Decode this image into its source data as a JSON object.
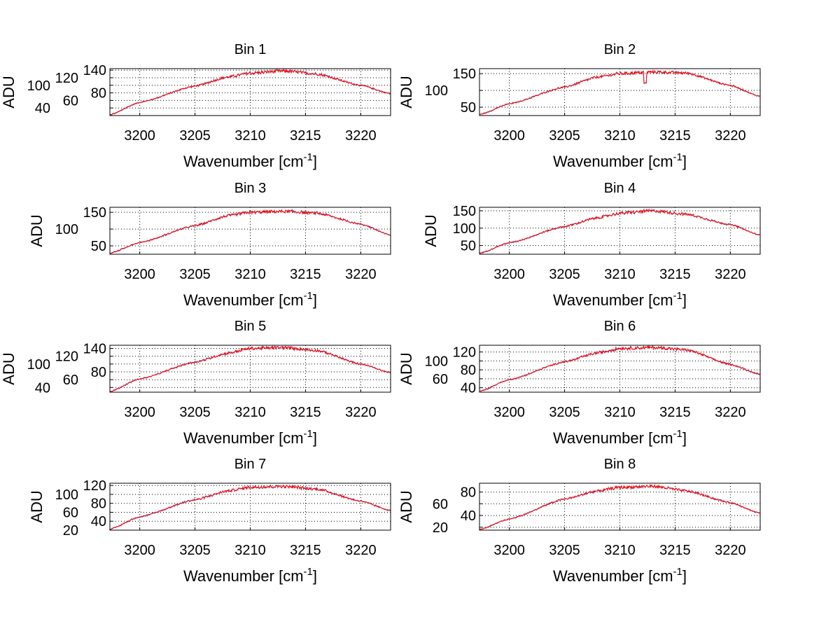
{
  "chart_data": [
    {
      "type": "line",
      "title": "Bin 1",
      "xlabel": "Wavenumber [cm",
      "xlabel_sup": "-1",
      "xlabel_end": "]",
      "ylabel": "ADU",
      "xlim": [
        3197.3,
        3222.7
      ],
      "ylim": [
        20,
        144
      ],
      "xticks": [
        3200,
        3205,
        3210,
        3215,
        3220
      ],
      "yticks": [
        40,
        60,
        80,
        100,
        120,
        140
      ],
      "grid": true,
      "x": [
        3197.3,
        3200,
        3205,
        3208,
        3210,
        3213,
        3216,
        3220,
        3222.7
      ],
      "y": [
        22,
        55,
        98,
        122,
        132,
        138,
        130,
        100,
        78
      ]
    },
    {
      "type": "line",
      "title": "Bin 2",
      "xlabel": "Wavenumber [cm",
      "xlabel_sup": "-1",
      "xlabel_end": "]",
      "ylabel": "ADU",
      "xlim": [
        3197.3,
        3222.7
      ],
      "ylim": [
        25,
        165
      ],
      "xticks": [
        3200,
        3205,
        3210,
        3215,
        3220
      ],
      "yticks": [
        50,
        100,
        150
      ],
      "grid": true,
      "x": [
        3197.3,
        3200,
        3205,
        3208,
        3210,
        3213,
        3216,
        3220,
        3222.7
      ],
      "y": [
        28,
        60,
        110,
        140,
        150,
        155,
        152,
        115,
        82
      ],
      "dip": {
        "x": 3212.3,
        "y": 122
      }
    },
    {
      "type": "line",
      "title": "Bin 3",
      "xlabel": "Wavenumber [cm",
      "xlabel_sup": "-1",
      "xlabel_end": "]",
      "ylabel": "ADU",
      "xlim": [
        3197.3,
        3222.7
      ],
      "ylim": [
        25,
        165
      ],
      "xticks": [
        3200,
        3205,
        3210,
        3215,
        3220
      ],
      "yticks": [
        50,
        100,
        150
      ],
      "grid": true,
      "x": [
        3197.3,
        3200,
        3205,
        3208,
        3210,
        3213,
        3216,
        3220,
        3222.7
      ],
      "y": [
        28,
        60,
        110,
        140,
        150,
        153,
        148,
        115,
        82
      ]
    },
    {
      "type": "line",
      "title": "Bin 4",
      "xlabel": "Wavenumber [cm",
      "xlabel_sup": "-1",
      "xlabel_end": "]",
      "ylabel": "ADU",
      "xlim": [
        3197.3,
        3222.7
      ],
      "ylim": [
        25,
        160
      ],
      "xticks": [
        3200,
        3205,
        3210,
        3215,
        3220
      ],
      "yticks": [
        50,
        100,
        150
      ],
      "grid": true,
      "x": [
        3197.3,
        3200,
        3205,
        3208,
        3210,
        3213,
        3216,
        3220,
        3222.7
      ],
      "y": [
        28,
        58,
        105,
        130,
        143,
        150,
        140,
        110,
        80
      ]
    },
    {
      "type": "line",
      "title": "Bin 5",
      "xlabel": "Wavenumber [cm",
      "xlabel_sup": "-1",
      "xlabel_end": "]",
      "ylabel": "ADU",
      "xlim": [
        3197.3,
        3222.7
      ],
      "ylim": [
        28,
        148
      ],
      "xticks": [
        3200,
        3205,
        3210,
        3215,
        3220
      ],
      "yticks": [
        40,
        60,
        80,
        100,
        120,
        140
      ],
      "grid": true,
      "x": [
        3197.3,
        3200,
        3205,
        3208,
        3210,
        3213,
        3216,
        3220,
        3222.7
      ],
      "y": [
        30,
        62,
        105,
        128,
        140,
        142,
        135,
        100,
        78
      ]
    },
    {
      "type": "line",
      "title": "Bin 6",
      "xlabel": "Wavenumber [cm",
      "xlabel_sup": "-1",
      "xlabel_end": "]",
      "ylabel": "ADU",
      "xlim": [
        3197.3,
        3222.7
      ],
      "ylim": [
        30,
        135
      ],
      "xticks": [
        3200,
        3205,
        3210,
        3215,
        3220
      ],
      "yticks": [
        40,
        60,
        80,
        100,
        120
      ],
      "grid": true,
      "x": [
        3197.3,
        3200,
        3205,
        3208,
        3210,
        3213,
        3216,
        3220,
        3222.7
      ],
      "y": [
        32,
        58,
        98,
        118,
        128,
        130,
        125,
        92,
        70
      ]
    },
    {
      "type": "line",
      "title": "Bin 7",
      "xlabel": "Wavenumber [cm",
      "xlabel_sup": "-1",
      "xlabel_end": "]",
      "ylabel": "ADU",
      "xlim": [
        3197.3,
        3222.7
      ],
      "ylim": [
        20,
        125
      ],
      "xticks": [
        3200,
        3205,
        3210,
        3215,
        3220
      ],
      "yticks": [
        20,
        40,
        60,
        80,
        100,
        120
      ],
      "grid": true,
      "x": [
        3197.3,
        3200,
        3205,
        3208,
        3210,
        3213,
        3216,
        3220,
        3222.7
      ],
      "y": [
        22,
        50,
        88,
        108,
        116,
        118,
        112,
        85,
        64
      ]
    },
    {
      "type": "line",
      "title": "Bin 8",
      "xlabel": "Wavenumber [cm",
      "xlabel_sup": "-1",
      "xlabel_end": "]",
      "ylabel": "ADU",
      "xlim": [
        3197.3,
        3222.7
      ],
      "ylim": [
        15,
        95
      ],
      "xticks": [
        3200,
        3205,
        3210,
        3215,
        3220
      ],
      "yticks": [
        20,
        40,
        60,
        80
      ],
      "grid": true,
      "x": [
        3197.3,
        3200,
        3205,
        3208,
        3210,
        3213,
        3216,
        3220,
        3222.7
      ],
      "y": [
        16,
        34,
        68,
        82,
        88,
        90,
        82,
        62,
        44
      ]
    }
  ],
  "colors": {
    "line": "#ff0000",
    "under": "#4060c0",
    "grid": "#000000"
  }
}
